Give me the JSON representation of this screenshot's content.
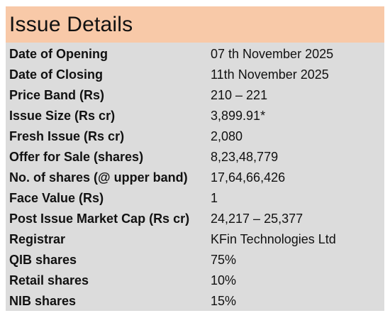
{
  "header": {
    "title": "Issue Details"
  },
  "rows": [
    {
      "label": "Date of Opening",
      "value": "07 th November 2025"
    },
    {
      "label": "Date of Closing",
      "value": "11th November 2025"
    },
    {
      "label": "Price Band (Rs)",
      "value": "210 – 221"
    },
    {
      "label": "Issue Size (Rs cr)",
      "value": "3,899.91*"
    },
    {
      "label": "Fresh Issue (Rs cr)",
      "value": "2,080"
    },
    {
      "label": "Offer for Sale (shares)",
      "value": "8,23,48,779"
    },
    {
      "label": "No. of shares (@ upper band)",
      "value": "17,64,66,426"
    },
    {
      "label": "Face Value (Rs)",
      "value": "1"
    },
    {
      "label": "Post Issue Market Cap (Rs cr)",
      "value": "24,217 – 25,377"
    },
    {
      "label": "Registrar",
      "value": "KFin Technologies Ltd"
    },
    {
      "label": "QIB shares",
      "value": "75%"
    },
    {
      "label": "Retail shares",
      "value": "10%"
    },
    {
      "label": "NIB shares",
      "value": "15%"
    }
  ]
}
